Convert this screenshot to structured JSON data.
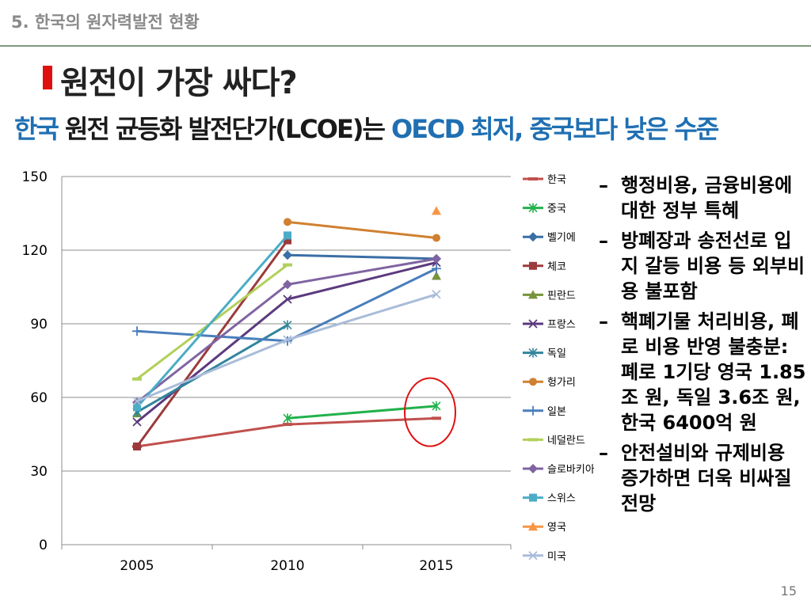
{
  "section": {
    "title": "5. 한국의 원자력발전 현황"
  },
  "slide": {
    "title": "원전이 가장 싸다?",
    "subtitle_part1": "한국",
    "subtitle_part2": " 원전 균등화 발전단가(LCOE)는 ",
    "subtitle_part3": "OECD 최저, 중국보다 낮은 수준"
  },
  "bullets": [
    "행정비용, 금융비용에 대한 정부 특혜",
    "방폐장과 송전선로 입지 갈등 비용 등 외부비용 불포함",
    "핵폐기물 처리비용, 폐로 비용 반영 불충분: 폐로 1기당 영국 1.85조 원, 독일 3.6조 원, 한국 6400억 원",
    "안전설비와 규제비용 증가하면 더욱 비싸질 전망"
  ],
  "page_number": "15",
  "colors": {
    "title_mark": "#e01010",
    "highlight_ellipse": "#e01010",
    "subtitle_blue": "#1f6fb2"
  },
  "chart_data": {
    "type": "line",
    "categories": [
      "2005",
      "2010",
      "2015"
    ],
    "ylim": [
      0,
      150
    ],
    "yticks": [
      0,
      30,
      60,
      90,
      120,
      150
    ],
    "annotation": "red ellipse around 한국 and 중국 values in 2015",
    "series": [
      {
        "name": "한국",
        "color": "#c0504d",
        "marker": "dash",
        "values": [
          40,
          49,
          51.5
        ]
      },
      {
        "name": "중국",
        "color": "#22b14c",
        "marker": "star",
        "values": [
          null,
          51.5,
          56.5
        ]
      },
      {
        "name": "벨기에",
        "color": "#3a6ea5",
        "marker": "diamond",
        "values": [
          null,
          118,
          116.5
        ]
      },
      {
        "name": "체코",
        "color": "#9b3b3b",
        "marker": "square",
        "values": [
          40,
          124,
          null
        ]
      },
      {
        "name": "핀란드",
        "color": "#77933c",
        "marker": "triangle",
        "values": [
          53.5,
          null,
          109.5
        ]
      },
      {
        "name": "프랑스",
        "color": "#5b3a7e",
        "marker": "x",
        "values": [
          50,
          100,
          115
        ]
      },
      {
        "name": "독일",
        "color": "#31859c",
        "marker": "star",
        "values": [
          54,
          89.5,
          null
        ]
      },
      {
        "name": "헝가리",
        "color": "#d08030",
        "marker": "circle",
        "values": [
          null,
          131.5,
          125
        ]
      },
      {
        "name": "일본",
        "color": "#4a7ebb",
        "marker": "plus",
        "values": [
          87,
          83,
          112.5
        ]
      },
      {
        "name": "네덜란드",
        "color": "#b2d05b",
        "marker": "dash",
        "values": [
          67.5,
          114,
          null
        ]
      },
      {
        "name": "슬로바키아",
        "color": "#8064a2",
        "marker": "diamond",
        "values": [
          58,
          106,
          116.5
        ]
      },
      {
        "name": "스위스",
        "color": "#4bacc6",
        "marker": "square",
        "values": [
          56,
          126,
          null
        ]
      },
      {
        "name": "영국",
        "color": "#f79646",
        "marker": "triangle",
        "values": [
          null,
          null,
          136
        ]
      },
      {
        "name": "미국",
        "color": "#a9bcd9",
        "marker": "x",
        "values": [
          58.5,
          83.5,
          102
        ]
      }
    ]
  }
}
